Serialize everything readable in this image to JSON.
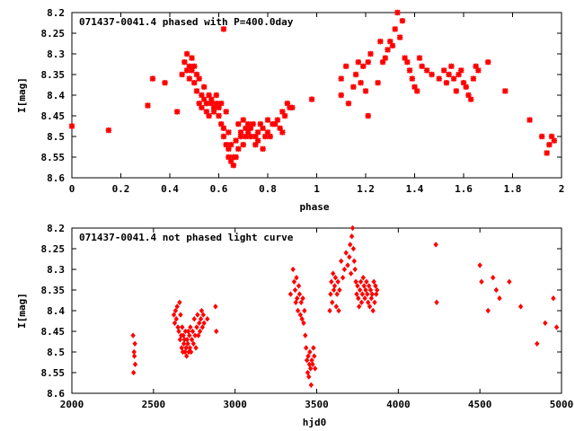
{
  "colors": {
    "points": "#ff0000",
    "axes": "#000000",
    "background": "#ffffff"
  },
  "chart_data": [
    {
      "type": "scatter",
      "title": "071437-0041.4 phased with P=400.0day",
      "xlabel": "phase",
      "ylabel": "I[mag]",
      "xlim": [
        0,
        2
      ],
      "ylim": [
        8.2,
        8.6
      ],
      "y_inverted": true,
      "grid": false,
      "xticks": [
        0,
        0.2,
        0.4,
        0.6,
        0.8,
        1,
        1.2,
        1.4,
        1.6,
        1.8,
        2
      ],
      "xtick_labels": [
        "0",
        "0.2",
        "0.4",
        "0.6",
        "0.8",
        "1",
        "1.2",
        "1.4",
        "1.6",
        "1.8",
        "2"
      ],
      "yticks": [
        8.2,
        8.25,
        8.3,
        8.35,
        8.4,
        8.45,
        8.5,
        8.55,
        8.6
      ],
      "ytick_labels": [
        "8.2",
        "8.25",
        "8.3",
        "8.35",
        "8.4",
        "8.45",
        "8.5",
        "8.55",
        "8.6"
      ],
      "marker": "star",
      "x": [
        0.0,
        0.15,
        0.31,
        0.33,
        0.38,
        0.43,
        0.45,
        0.46,
        0.47,
        0.47,
        0.48,
        0.48,
        0.49,
        0.49,
        0.5,
        0.5,
        0.51,
        0.51,
        0.52,
        0.52,
        0.53,
        0.53,
        0.54,
        0.54,
        0.55,
        0.55,
        0.56,
        0.56,
        0.57,
        0.57,
        0.58,
        0.58,
        0.59,
        0.59,
        0.6,
        0.6,
        0.61,
        0.61,
        0.62,
        0.62,
        0.63,
        0.63,
        0.64,
        0.64,
        0.64,
        0.65,
        0.65,
        0.66,
        0.66,
        0.67,
        0.67,
        0.68,
        0.68,
        0.69,
        0.69,
        0.7,
        0.7,
        0.71,
        0.71,
        0.72,
        0.72,
        0.73,
        0.73,
        0.74,
        0.75,
        0.75,
        0.76,
        0.76,
        0.77,
        0.78,
        0.78,
        0.79,
        0.8,
        0.8,
        0.81,
        0.82,
        0.83,
        0.84,
        0.85,
        0.86,
        0.86,
        0.87,
        0.88,
        0.89,
        0.9,
        0.62,
        0.98,
        1.1,
        1.1,
        1.12,
        1.13,
        1.15,
        1.16,
        1.17,
        1.18,
        1.19,
        1.2,
        1.21,
        1.21,
        1.22,
        1.25,
        1.26,
        1.27,
        1.28,
        1.29,
        1.3,
        1.31,
        1.32,
        1.33,
        1.34,
        1.35,
        1.36,
        1.37,
        1.38,
        1.39,
        1.4,
        1.41,
        1.42,
        1.43,
        1.45,
        1.47,
        1.5,
        1.52,
        1.53,
        1.54,
        1.55,
        1.56,
        1.57,
        1.58,
        1.59,
        1.6,
        1.61,
        1.62,
        1.63,
        1.64,
        1.65,
        1.66,
        1.7,
        1.77,
        1.87,
        1.92,
        1.94,
        1.95,
        1.96,
        1.97
      ],
      "y": [
        8.475,
        8.485,
        8.425,
        8.36,
        8.37,
        8.44,
        8.35,
        8.32,
        8.34,
        8.3,
        8.33,
        8.36,
        8.31,
        8.34,
        8.33,
        8.37,
        8.35,
        8.39,
        8.36,
        8.42,
        8.4,
        8.43,
        8.38,
        8.41,
        8.44,
        8.42,
        8.4,
        8.45,
        8.41,
        8.42,
        8.43,
        8.44,
        8.4,
        8.42,
        8.45,
        8.43,
        8.47,
        8.42,
        8.48,
        8.5,
        8.44,
        8.52,
        8.53,
        8.49,
        8.55,
        8.52,
        8.56,
        8.55,
        8.57,
        8.51,
        8.55,
        8.47,
        8.53,
        8.5,
        8.49,
        8.46,
        8.52,
        8.48,
        8.5,
        8.47,
        8.49,
        8.5,
        8.48,
        8.47,
        8.5,
        8.52,
        8.49,
        8.51,
        8.47,
        8.48,
        8.53,
        8.5,
        8.49,
        8.46,
        8.5,
        8.47,
        8.47,
        8.46,
        8.48,
        8.49,
        8.44,
        8.45,
        8.42,
        8.43,
        8.43,
        8.24,
        8.41,
        8.36,
        8.4,
        8.33,
        8.42,
        8.38,
        8.35,
        8.32,
        8.37,
        8.33,
        8.39,
        8.45,
        8.32,
        8.3,
        8.37,
        8.27,
        8.32,
        8.31,
        8.29,
        8.27,
        8.28,
        8.24,
        8.2,
        8.26,
        8.22,
        8.31,
        8.32,
        8.34,
        8.36,
        8.38,
        8.39,
        8.31,
        8.33,
        8.34,
        8.35,
        8.36,
        8.34,
        8.37,
        8.35,
        8.33,
        8.36,
        8.39,
        8.35,
        8.34,
        8.37,
        8.38,
        8.4,
        8.41,
        8.36,
        8.33,
        8.34,
        8.32,
        8.39,
        8.46,
        8.5,
        8.54,
        8.52,
        8.5,
        8.51
      ]
    },
    {
      "type": "scatter",
      "title": "071437-0041.4 not phased light curve",
      "xlabel": "hjd0",
      "ylabel": "I[mag]",
      "xlim": [
        2000,
        5000
      ],
      "ylim": [
        8.2,
        8.6
      ],
      "y_inverted": true,
      "grid": false,
      "xticks": [
        2000,
        2500,
        3000,
        3500,
        4000,
        4500,
        5000
      ],
      "xtick_labels": [
        "2000",
        "2500",
        "3000",
        "3500",
        "4000",
        "4500",
        "5000"
      ],
      "yticks": [
        8.2,
        8.25,
        8.3,
        8.35,
        8.4,
        8.45,
        8.5,
        8.55,
        8.6
      ],
      "ytick_labels": [
        "8.2",
        "8.25",
        "8.3",
        "8.35",
        "8.4",
        "8.45",
        "8.5",
        "8.55",
        "8.6"
      ],
      "marker": "diamond",
      "x": [
        2375,
        2378,
        2381,
        2383,
        2386,
        2388,
        2625,
        2630,
        2635,
        2640,
        2645,
        2650,
        2655,
        2660,
        2663,
        2666,
        2670,
        2673,
        2676,
        2680,
        2683,
        2686,
        2690,
        2693,
        2696,
        2700,
        2703,
        2706,
        2710,
        2713,
        2716,
        2720,
        2723,
        2726,
        2730,
        2735,
        2740,
        2745,
        2750,
        2755,
        2760,
        2765,
        2770,
        2775,
        2780,
        2785,
        2790,
        2795,
        2800,
        2805,
        2810,
        2830,
        2880,
        2885,
        3340,
        3355,
        3362,
        3368,
        3372,
        3376,
        3380,
        3385,
        3390,
        3395,
        3400,
        3405,
        3410,
        3415,
        3420,
        3425,
        3430,
        3435,
        3440,
        3445,
        3448,
        3452,
        3455,
        3458,
        3462,
        3466,
        3470,
        3475,
        3480,
        3485,
        3490,
        3580,
        3585,
        3590,
        3595,
        3600,
        3605,
        3610,
        3615,
        3620,
        3625,
        3630,
        3635,
        3640,
        3650,
        3660,
        3670,
        3680,
        3690,
        3700,
        3705,
        3710,
        3715,
        3720,
        3725,
        3730,
        3735,
        3740,
        3745,
        3750,
        3755,
        3760,
        3765,
        3770,
        3775,
        3780,
        3785,
        3790,
        3795,
        3800,
        3805,
        3810,
        3815,
        3820,
        3825,
        3830,
        3835,
        3840,
        3845,
        3850,
        3855,
        3860,
        3865,
        3870,
        4230,
        4235,
        4500,
        4510,
        4550,
        4580,
        4600,
        4620,
        4680,
        4750,
        4850,
        4900,
        4950,
        4970
      ],
      "y": [
        8.46,
        8.55,
        8.5,
        8.51,
        8.48,
        8.53,
        8.41,
        8.43,
        8.4,
        8.42,
        8.39,
        8.44,
        8.45,
        8.38,
        8.47,
        8.41,
        8.46,
        8.49,
        8.44,
        8.5,
        8.46,
        8.48,
        8.47,
        8.5,
        8.45,
        8.49,
        8.51,
        8.47,
        8.48,
        8.45,
        8.5,
        8.46,
        8.49,
        8.44,
        8.5,
        8.47,
        8.45,
        8.48,
        8.42,
        8.46,
        8.49,
        8.44,
        8.41,
        8.46,
        8.43,
        8.45,
        8.42,
        8.4,
        8.44,
        8.41,
        8.43,
        8.42,
        8.39,
        8.45,
        8.36,
        8.3,
        8.33,
        8.35,
        8.38,
        8.32,
        8.37,
        8.4,
        8.34,
        8.36,
        8.41,
        8.38,
        8.42,
        8.37,
        8.43,
        8.4,
        8.46,
        8.49,
        8.52,
        8.55,
        8.51,
        8.56,
        8.53,
        8.5,
        8.54,
        8.58,
        8.52,
        8.53,
        8.49,
        8.51,
        8.54,
        8.4,
        8.36,
        8.33,
        8.38,
        8.31,
        8.35,
        8.34,
        8.32,
        8.39,
        8.36,
        8.33,
        8.4,
        8.35,
        8.28,
        8.32,
        8.3,
        8.26,
        8.29,
        8.27,
        8.24,
        8.31,
        8.22,
        8.2,
        8.25,
        8.28,
        8.3,
        8.33,
        8.36,
        8.34,
        8.37,
        8.39,
        8.35,
        8.33,
        8.38,
        8.36,
        8.32,
        8.34,
        8.37,
        8.35,
        8.33,
        8.36,
        8.38,
        8.34,
        8.39,
        8.35,
        8.37,
        8.36,
        8.4,
        8.33,
        8.38,
        8.34,
        8.36,
        8.35,
        8.24,
        8.38,
        8.29,
        8.33,
        8.4,
        8.32,
        8.35,
        8.37,
        8.33,
        8.39,
        8.48,
        8.43,
        8.37,
        8.44
      ]
    }
  ]
}
